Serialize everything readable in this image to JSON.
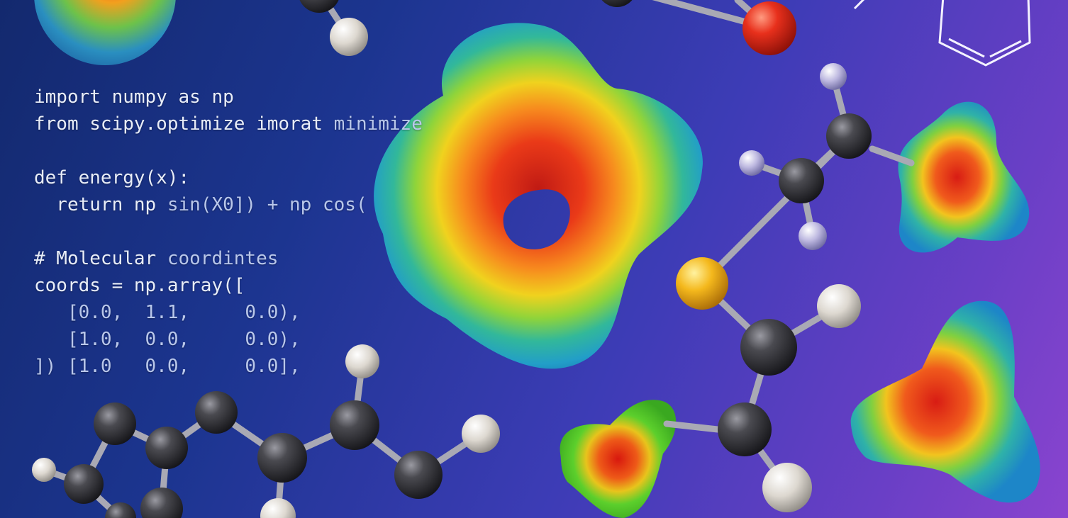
{
  "code": {
    "lines": [
      {
        "main": "import numpy as np",
        "dim": ""
      },
      {
        "main": "from scipy.optimize imorat ",
        "dim": "minimize"
      },
      {
        "main": "",
        "dim": ""
      },
      {
        "main": "def energy(x):",
        "dim": ""
      },
      {
        "main": "  return np ",
        "dim": "sin(X0]) + np cos("
      },
      {
        "main": "",
        "dim": ""
      },
      {
        "main": "# Molecular ",
        "dim": "coordintes"
      },
      {
        "main": "coords = np.array([",
        "dim": ""
      },
      {
        "main": "",
        "dim": "   [0.0,  1.1,     0.0),"
      },
      {
        "main": "",
        "dim": "   [1.0,  0.0,     0.0),"
      },
      {
        "main": "",
        "dim": "]) [1.0   0.0,     0.0],"
      }
    ]
  },
  "colors": {
    "carbon": "#3a3a3e",
    "hydrogen": "#e6e2dc",
    "oxygen": "#e0321e",
    "sulfur": "#f1b81d",
    "nitrogen_like": "#b8b4dc",
    "bond": "#a9a9b4"
  }
}
